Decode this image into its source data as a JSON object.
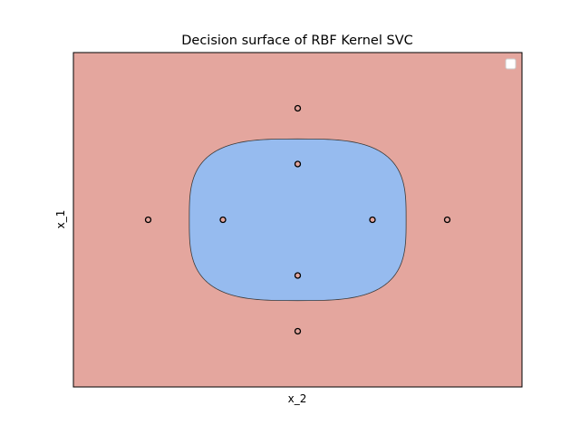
{
  "chart_data": {
    "type": "scatter",
    "title": "Decision surface of RBF Kernel SVC",
    "xlabel": "x_2",
    "ylabel": "x_1",
    "xlim": [
      -3,
      3
    ],
    "ylim": [
      -3,
      3
    ],
    "ticks_visible": false,
    "grid": false,
    "legend": {
      "placement": "upper right",
      "entries": []
    },
    "colors": {
      "outer_region": "#e4a69e",
      "inner_region": "#96bbef",
      "boundary": "#3a3a3a",
      "point_edge": "#000000",
      "point_face": "#e4a69e"
    },
    "decision_region": {
      "inner_class": "blue",
      "outer_class": "red",
      "boundary_extent_x": [
        -1.45,
        1.45
      ],
      "boundary_extent_y": [
        -1.45,
        1.45
      ]
    },
    "points": [
      {
        "x": 0,
        "y": 2
      },
      {
        "x": 0,
        "y": 1
      },
      {
        "x": -2,
        "y": 0
      },
      {
        "x": -1,
        "y": 0
      },
      {
        "x": 1,
        "y": 0
      },
      {
        "x": 2,
        "y": 0
      },
      {
        "x": 0,
        "y": -1
      },
      {
        "x": 0,
        "y": -2
      }
    ]
  }
}
